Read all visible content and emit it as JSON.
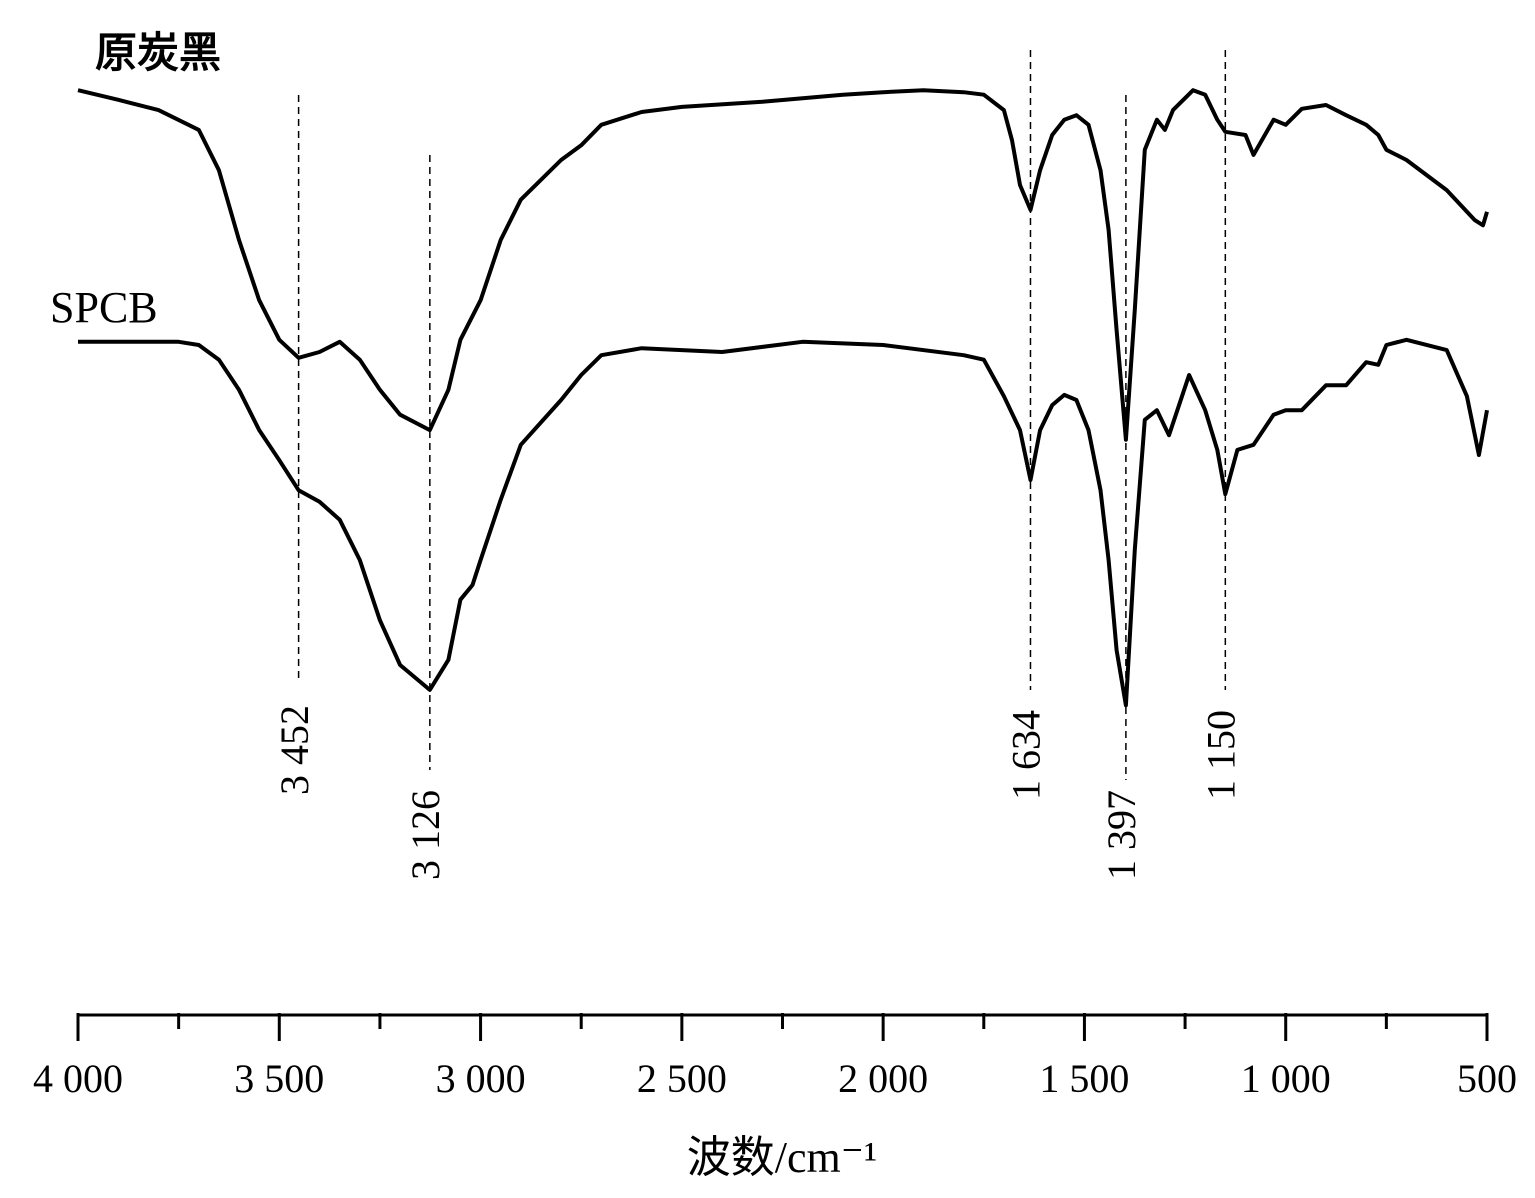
{
  "chart_data": {
    "type": "line",
    "xlabel": "波数/cm⁻¹",
    "xlim": [
      4000,
      500
    ],
    "ylim": [
      0,
      100
    ],
    "xticks": [
      {
        "value": 4000,
        "label": "4 000"
      },
      {
        "value": 3500,
        "label": "3 500"
      },
      {
        "value": 3000,
        "label": "3 000"
      },
      {
        "value": 2500,
        "label": "2 500"
      },
      {
        "value": 2000,
        "label": "2 000"
      },
      {
        "value": 1500,
        "label": "1 500"
      },
      {
        "value": 1000,
        "label": "1 000"
      },
      500
    ],
    "xminorticks": [
      3750,
      3250,
      2750,
      2250,
      1750,
      1250,
      750
    ],
    "series": [
      {
        "name": "原炭黑",
        "color": "#000000",
        "x": [
          4000,
          3900,
          3800,
          3700,
          3650,
          3600,
          3550,
          3500,
          3452,
          3400,
          3350,
          3300,
          3250,
          3200,
          3126,
          3080,
          3050,
          3000,
          2950,
          2900,
          2800,
          2750,
          2700,
          2600,
          2500,
          2300,
          2100,
          2000,
          1900,
          1800,
          1750,
          1700,
          1680,
          1660,
          1634,
          1610,
          1580,
          1550,
          1520,
          1490,
          1460,
          1440,
          1420,
          1397,
          1375,
          1350,
          1320,
          1300,
          1280,
          1230,
          1200,
          1170,
          1150,
          1100,
          1080,
          1030,
          1000,
          960,
          900,
          850,
          800,
          770,
          750,
          700,
          600,
          530,
          510,
          500
        ],
        "values": [
          98.4,
          96.9,
          95.3,
          92.2,
          85.9,
          75,
          65.6,
          59.4,
          56.6,
          57.5,
          59.1,
          56.3,
          51.6,
          47.7,
          45.3,
          51.6,
          59.4,
          65.6,
          75,
          81.3,
          87.5,
          89.8,
          93,
          95,
          95.8,
          96.6,
          97.7,
          98.1,
          98.4,
          98.1,
          97.7,
          95.3,
          90.6,
          83.6,
          79.7,
          85.9,
          91.4,
          93.8,
          94.5,
          93,
          85.9,
          76.6,
          60.9,
          43.8,
          64.1,
          89.1,
          93.8,
          92.2,
          95.3,
          98.4,
          97.7,
          93.8,
          91.9,
          91.4,
          88.3,
          93.8,
          93,
          95.5,
          96.1,
          94.5,
          93,
          91.4,
          89.1,
          87.5,
          82.8,
          78.1,
          77.3,
          79.4
        ]
      },
      {
        "name": "SPCB",
        "color": "#000000",
        "x": [
          4000,
          3750,
          3700,
          3650,
          3600,
          3550,
          3500,
          3452,
          3400,
          3350,
          3300,
          3250,
          3200,
          3126,
          3080,
          3050,
          3020,
          3000,
          2950,
          2900,
          2800,
          2750,
          2700,
          2600,
          2400,
          2200,
          2000,
          1800,
          1750,
          1700,
          1660,
          1634,
          1610,
          1580,
          1550,
          1520,
          1490,
          1460,
          1440,
          1420,
          1397,
          1375,
          1350,
          1320,
          1290,
          1240,
          1200,
          1170,
          1150,
          1120,
          1080,
          1030,
          1000,
          960,
          900,
          850,
          800,
          770,
          750,
          700,
          600,
          550,
          520,
          500
        ],
        "values": [
          59.1,
          59.1,
          58.6,
          56.3,
          51.6,
          45.3,
          40.6,
          35.9,
          34.1,
          31.3,
          25,
          15.6,
          8.6,
          4.7,
          9.4,
          18.8,
          21.1,
          25,
          34.4,
          43,
          50,
          53.9,
          57,
          58.1,
          57.5,
          59.1,
          58.6,
          57,
          56.3,
          50.6,
          45.3,
          37.5,
          45.3,
          49.2,
          50.8,
          50,
          45.3,
          35.9,
          25,
          10.9,
          2.3,
          26.6,
          46.9,
          48.4,
          44.5,
          53.9,
          48.4,
          42.2,
          35.3,
          42.2,
          43,
          47.7,
          48.4,
          48.4,
          52.3,
          52.3,
          55.9,
          55.5,
          58.6,
          59.4,
          57.8,
          50.6,
          41.4,
          48.4
        ]
      }
    ],
    "annotations": [
      {
        "x": 3452,
        "label": "3 452"
      },
      {
        "x": 3126,
        "label": "3 126"
      },
      {
        "x": 1634,
        "label": "1 634"
      },
      {
        "x": 1397,
        "label": "1 397"
      },
      {
        "x": 1150,
        "label": "1 150"
      }
    ]
  }
}
